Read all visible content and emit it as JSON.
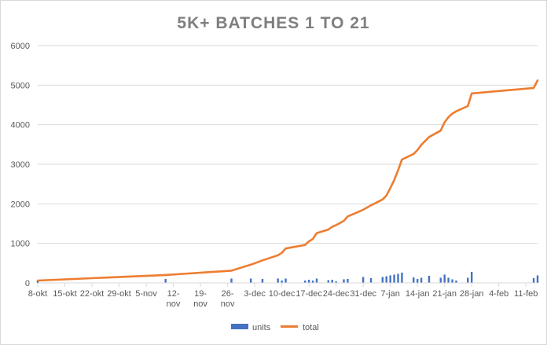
{
  "chart_data": {
    "type": "bar+line",
    "title": "5K+ BATCHES 1 TO 21",
    "xlabel": "",
    "ylabel": "",
    "ylim": [
      0,
      6000
    ],
    "y_ticks": [
      0,
      1000,
      2000,
      3000,
      4000,
      5000,
      6000
    ],
    "x_range": [
      "2020-10-08",
      "2021-02-14"
    ],
    "x_ticks": [
      {
        "date": "2020-10-08",
        "label": [
          "8-okt"
        ]
      },
      {
        "date": "2020-10-15",
        "label": [
          "15-okt"
        ]
      },
      {
        "date": "2020-10-22",
        "label": [
          "22-okt"
        ]
      },
      {
        "date": "2020-10-29",
        "label": [
          "29-okt"
        ]
      },
      {
        "date": "2020-11-05",
        "label": [
          "5-nov"
        ]
      },
      {
        "date": "2020-11-12",
        "label": [
          "12-",
          "nov"
        ]
      },
      {
        "date": "2020-11-19",
        "label": [
          "19-",
          "nov"
        ]
      },
      {
        "date": "2020-11-26",
        "label": [
          "26-",
          "nov"
        ]
      },
      {
        "date": "2020-12-03",
        "label": [
          "3-dec"
        ]
      },
      {
        "date": "2020-12-10",
        "label": [
          "10-dec"
        ]
      },
      {
        "date": "2020-12-17",
        "label": [
          "17-dec"
        ]
      },
      {
        "date": "2020-12-24",
        "label": [
          "24-dec"
        ]
      },
      {
        "date": "2020-12-31",
        "label": [
          "31-dec"
        ]
      },
      {
        "date": "2021-01-07",
        "label": [
          "7-jan"
        ]
      },
      {
        "date": "2021-01-14",
        "label": [
          "14-jan"
        ]
      },
      {
        "date": "2021-01-21",
        "label": [
          "21-jan"
        ]
      },
      {
        "date": "2021-01-28",
        "label": [
          "28-jan"
        ]
      },
      {
        "date": "2021-02-04",
        "label": [
          "4-feb"
        ]
      },
      {
        "date": "2021-02-11",
        "label": [
          "11-feb"
        ]
      }
    ],
    "grid": "horizontal",
    "legend_position": "bottom",
    "series": [
      {
        "name": "units",
        "type": "bar",
        "color": "#4472c4",
        "points": [
          {
            "x": "2020-10-08",
            "y": 60
          },
          {
            "x": "2020-11-10",
            "y": 100
          },
          {
            "x": "2020-11-27",
            "y": 110
          },
          {
            "x": "2020-12-02",
            "y": 110
          },
          {
            "x": "2020-12-05",
            "y": 100
          },
          {
            "x": "2020-12-09",
            "y": 110
          },
          {
            "x": "2020-12-10",
            "y": 60
          },
          {
            "x": "2020-12-11",
            "y": 110
          },
          {
            "x": "2020-12-16",
            "y": 60
          },
          {
            "x": "2020-12-17",
            "y": 80
          },
          {
            "x": "2020-12-18",
            "y": 60
          },
          {
            "x": "2020-12-19",
            "y": 110
          },
          {
            "x": "2020-12-22",
            "y": 70
          },
          {
            "x": "2020-12-23",
            "y": 80
          },
          {
            "x": "2020-12-24",
            "y": 40
          },
          {
            "x": "2020-12-26",
            "y": 90
          },
          {
            "x": "2020-12-27",
            "y": 100
          },
          {
            "x": "2020-12-31",
            "y": 150
          },
          {
            "x": "2021-01-02",
            "y": 120
          },
          {
            "x": "2021-01-05",
            "y": 150
          },
          {
            "x": "2021-01-06",
            "y": 170
          },
          {
            "x": "2021-01-07",
            "y": 190
          },
          {
            "x": "2021-01-08",
            "y": 210
          },
          {
            "x": "2021-01-09",
            "y": 230
          },
          {
            "x": "2021-01-10",
            "y": 260
          },
          {
            "x": "2021-01-13",
            "y": 140
          },
          {
            "x": "2021-01-14",
            "y": 100
          },
          {
            "x": "2021-01-15",
            "y": 130
          },
          {
            "x": "2021-01-17",
            "y": 180
          },
          {
            "x": "2021-01-20",
            "y": 130
          },
          {
            "x": "2021-01-21",
            "y": 210
          },
          {
            "x": "2021-01-22",
            "y": 130
          },
          {
            "x": "2021-01-23",
            "y": 90
          },
          {
            "x": "2021-01-24",
            "y": 60
          },
          {
            "x": "2021-01-27",
            "y": 130
          },
          {
            "x": "2021-01-28",
            "y": 280
          },
          {
            "x": "2021-02-13",
            "y": 120
          },
          {
            "x": "2021-02-14",
            "y": 190
          }
        ]
      },
      {
        "name": "total",
        "type": "line",
        "color": "#ed7d31",
        "points": [
          {
            "x": "2020-10-08",
            "y": 60
          },
          {
            "x": "2020-11-10",
            "y": 200
          },
          {
            "x": "2020-11-27",
            "y": 310
          },
          {
            "x": "2020-12-02",
            "y": 460
          },
          {
            "x": "2020-12-05",
            "y": 570
          },
          {
            "x": "2020-12-09",
            "y": 700
          },
          {
            "x": "2020-12-10",
            "y": 760
          },
          {
            "x": "2020-12-11",
            "y": 870
          },
          {
            "x": "2020-12-16",
            "y": 960
          },
          {
            "x": "2020-12-17",
            "y": 1050
          },
          {
            "x": "2020-12-18",
            "y": 1110
          },
          {
            "x": "2020-12-19",
            "y": 1260
          },
          {
            "x": "2020-12-22",
            "y": 1350
          },
          {
            "x": "2020-12-23",
            "y": 1420
          },
          {
            "x": "2020-12-24",
            "y": 1460
          },
          {
            "x": "2020-12-26",
            "y": 1570
          },
          {
            "x": "2020-12-27",
            "y": 1680
          },
          {
            "x": "2020-12-31",
            "y": 1850
          },
          {
            "x": "2021-01-02",
            "y": 1960
          },
          {
            "x": "2021-01-05",
            "y": 2110
          },
          {
            "x": "2021-01-06",
            "y": 2210
          },
          {
            "x": "2021-01-07",
            "y": 2400
          },
          {
            "x": "2021-01-08",
            "y": 2600
          },
          {
            "x": "2021-01-09",
            "y": 2850
          },
          {
            "x": "2021-01-10",
            "y": 3120
          },
          {
            "x": "2021-01-13",
            "y": 3260
          },
          {
            "x": "2021-01-14",
            "y": 3360
          },
          {
            "x": "2021-01-15",
            "y": 3490
          },
          {
            "x": "2021-01-17",
            "y": 3690
          },
          {
            "x": "2021-01-20",
            "y": 3850
          },
          {
            "x": "2021-01-21",
            "y": 4060
          },
          {
            "x": "2021-01-22",
            "y": 4190
          },
          {
            "x": "2021-01-23",
            "y": 4280
          },
          {
            "x": "2021-01-24",
            "y": 4340
          },
          {
            "x": "2021-01-27",
            "y": 4470
          },
          {
            "x": "2021-01-28",
            "y": 4790
          },
          {
            "x": "2021-02-13",
            "y": 4930
          },
          {
            "x": "2021-02-14",
            "y": 5120
          }
        ]
      }
    ]
  }
}
